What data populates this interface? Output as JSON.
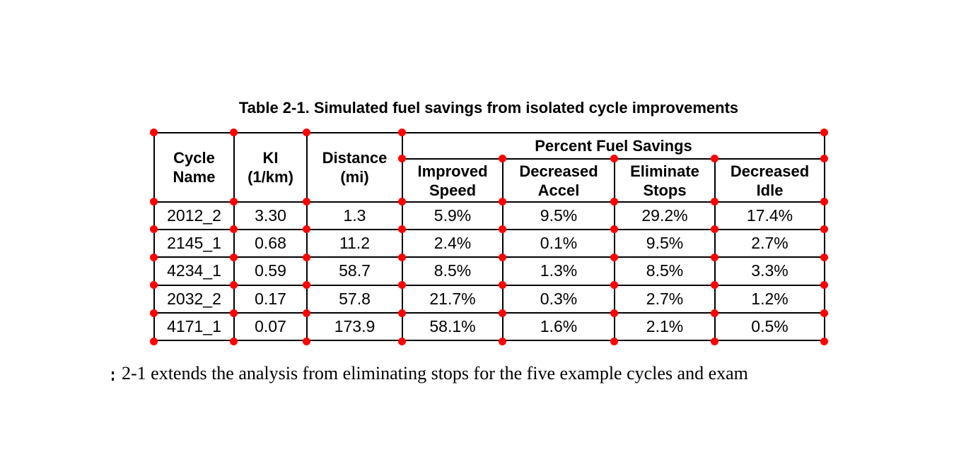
{
  "title": "Table 2-1. Simulated fuel savings from isolated cycle improvements",
  "body_text": "2-1 extends the analysis from eliminating stops for the five example cycles and exam",
  "table": {
    "header": {
      "cycle_name": "Cycle\nName",
      "ki": "KI\n(1/km)",
      "distance": "Distance\n(mi)",
      "group": "Percent Fuel Savings",
      "sub": [
        "Improved\nSpeed",
        "Decreased\nAccel",
        "Eliminate\nStops",
        "Decreased\nIdle"
      ]
    },
    "rows": [
      [
        "2012_2",
        "3.30",
        "1.3",
        "5.9%",
        "9.5%",
        "29.2%",
        "17.4%"
      ],
      [
        "2145_1",
        "0.68",
        "11.2",
        "2.4%",
        "0.1%",
        "9.5%",
        "2.7%"
      ],
      [
        "4234_1",
        "0.59",
        "58.7",
        "8.5%",
        "1.3%",
        "8.5%",
        "3.3%"
      ],
      [
        "2032_2",
        "0.17",
        "57.8",
        "21.7%",
        "0.3%",
        "2.7%",
        "1.2%"
      ],
      [
        "4171_1",
        "0.07",
        "173.9",
        "58.1%",
        "1.6%",
        "2.1%",
        "0.5%"
      ]
    ]
  },
  "annotations": {
    "marker_color": "#ff0000"
  }
}
